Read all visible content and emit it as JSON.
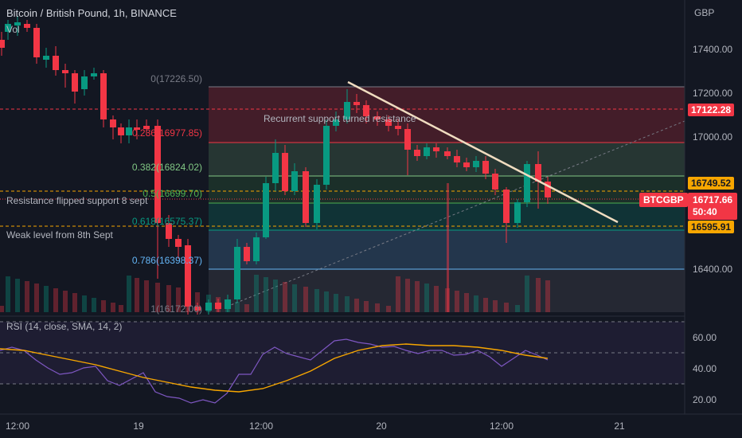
{
  "header": {
    "symbol_title": "Bitcoin / British Pound, 1h, BINANCE",
    "volume_label": "Vol",
    "currency": "GBP"
  },
  "price_axis": [
    "17400.00",
    "17200.00",
    "17000.00",
    "16400.00"
  ],
  "time_axis": [
    "12:00",
    "19",
    "12:00",
    "20",
    "12:00",
    "21"
  ],
  "price_tags": {
    "level_a": "17122.28",
    "level_b": "16749.52",
    "level_c": "16595.91",
    "symbol": "BTCGBP",
    "last_price": "16717.66",
    "countdown": "50:40"
  },
  "fib_levels": [
    {
      "label": "0(17226.50)",
      "price": 17226.5,
      "color": "#787b86"
    },
    {
      "label": "0.236(16977.85)",
      "price": 16977.85,
      "color": "#f23645"
    },
    {
      "label": "0.382(16824.02)",
      "price": 16824.02,
      "color": "#81c784"
    },
    {
      "label": "0.5(16699.70)",
      "price": 16699.7,
      "color": "#4caf50"
    },
    {
      "label": "0.618(16575.37)",
      "price": 16575.37,
      "color": "#089981"
    },
    {
      "label": "0.786(16398.37)",
      "price": 16398.37,
      "color": "#64b5f6"
    },
    {
      "label": "1(16172.00)",
      "price": 16172.0,
      "color": "#787b86"
    }
  ],
  "annotations": {
    "resistance_note": "Recurrent support turned resistance",
    "flip_note": "Resistance flipped support 8 sept",
    "weak_note": "Weak level from 8th Sept"
  },
  "rsi": {
    "title": "RSI (14, close, SMA, 14, 2)",
    "axis": [
      "60.00",
      "40.00",
      "20.00"
    ]
  },
  "colors": {
    "up": "#089981",
    "down": "#f23645",
    "trendline": "#f0dcc0",
    "rsi_line": "#7e57c2",
    "rsi_ma": "#f7a600",
    "background": "#131722"
  }
}
